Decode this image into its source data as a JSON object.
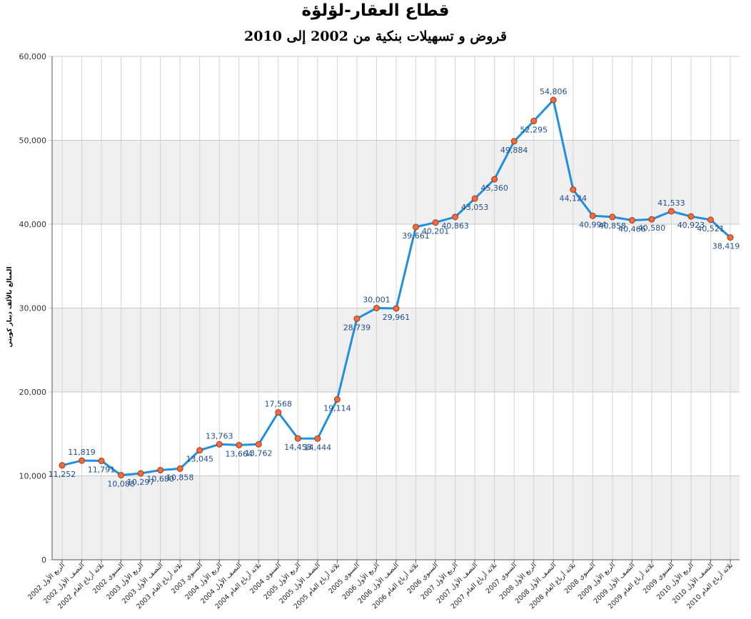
{
  "chart_data": {
    "type": "line",
    "title": "قطاع العقار-لؤلؤة",
    "subtitle": "قروض و تسهيلات بنكية من 2002 إلى 2010",
    "ylabel": "المبالغ بالألف دينار كويتي",
    "xlabel": "",
    "ylim": [
      0,
      60000
    ],
    "yticks": [
      "0",
      "10,000",
      "20,000",
      "30,000",
      "40,000",
      "50,000",
      "60,000"
    ],
    "grid": true,
    "legend": "none",
    "colors": {
      "line": "#1f8fe0",
      "marker_fill": "#f26b3c",
      "marker_stroke": "#a33a1a",
      "band": "#efefef",
      "label": "#1f4e8c"
    },
    "categories": [
      "الربع الأول 2002",
      "النصف الأول 2002",
      "ثلاثة أرباع العام 2002",
      "السنوي 2002",
      "الربع الأول 2003",
      "النصف الأول 2003",
      "ثلاثة أرباع العام 2003",
      "السنوي 2003",
      "الربع الأول 2004",
      "النصف الأول 2004",
      "ثلاثة أرباع العام 2004",
      "السنوي 2004",
      "الربع الأول 2005",
      "النصف الأول 2005",
      "ثلاثة أرباع العام 2005",
      "السنوي 2005",
      "الربع الأول 2006",
      "النصف الأول 2006",
      "ثلاثة أرباع العام 2006",
      "السنوي 2006",
      "الربع الأول 2007",
      "النصف الأول 2007",
      "ثلاثة أرباع العام 2007",
      "السنوي 2007",
      "الربع الأول 2008",
      "النصف الأول 2008",
      "ثلاثة أرباع العام 2008",
      "السنوي 2008",
      "الربع الأول 2009",
      "النصف الأول 2009",
      "ثلاثة أرباع العام 2009",
      "السنوي 2009",
      "الربع الأول 2010",
      "النصف الأول 2010",
      "ثلاثة أرباع العام 2010"
    ],
    "series": [
      {
        "values": [
          11252,
          11819,
          11791,
          10088,
          10297,
          10680,
          10858,
          13045,
          13763,
          13664,
          13762,
          17568,
          14458,
          14444,
          19114,
          28739,
          30001,
          29961,
          39661,
          40201,
          40863,
          43053,
          45360,
          49884,
          52295,
          54806,
          44124,
          40994,
          40858,
          40466,
          40580,
          41533,
          40923,
          40521,
          38419
        ],
        "labels": [
          "11,252",
          "11,819",
          "11,791",
          "10,088",
          "10,297",
          "10,680",
          "10,858",
          "13,045",
          "13,763",
          "13,664",
          "13,762",
          "17,568",
          "14,458",
          "14,444",
          "19,114",
          "28,739",
          "30,001",
          "29,961",
          "39,661",
          "40,201",
          "40,863",
          "43,053",
          "45,360",
          "49,884",
          "52,295",
          "54,806",
          "44,124",
          "40,994",
          "40,858",
          "40,466",
          "40,580",
          "41,533",
          "40,923",
          "40,521",
          "38,419"
        ]
      }
    ]
  }
}
